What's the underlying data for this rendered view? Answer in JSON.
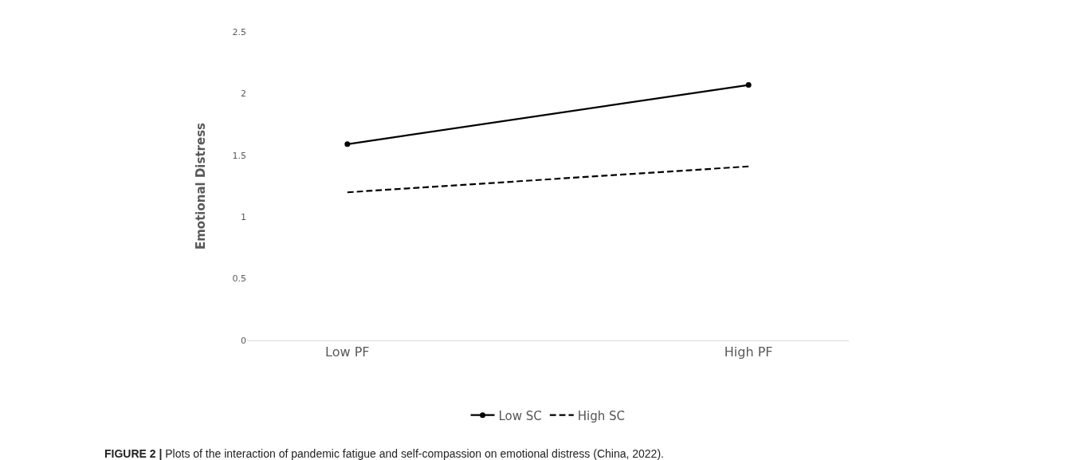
{
  "chart_data": {
    "type": "line",
    "ylabel": "Emotional Distress",
    "categories": [
      "Low PF",
      "High PF"
    ],
    "series": [
      {
        "name": "Low SC",
        "color": "#000000",
        "values": [
          1.59,
          2.07
        ],
        "marker": "circle",
        "line_style": "solid"
      },
      {
        "name": "High SC",
        "color": "#000000",
        "values": [
          1.2,
          1.41
        ],
        "marker": "none",
        "line_style": "dashed"
      }
    ],
    "ylim": [
      0,
      2.5
    ],
    "yticks": [
      0,
      0.5,
      1,
      1.5,
      2,
      2.5
    ],
    "legend": "bottom",
    "annotations": [
      "FIGURE 2 | Plots of the interaction of pandemic fatigue and self-compassion on emotional distress (China, 2022)."
    ]
  }
}
